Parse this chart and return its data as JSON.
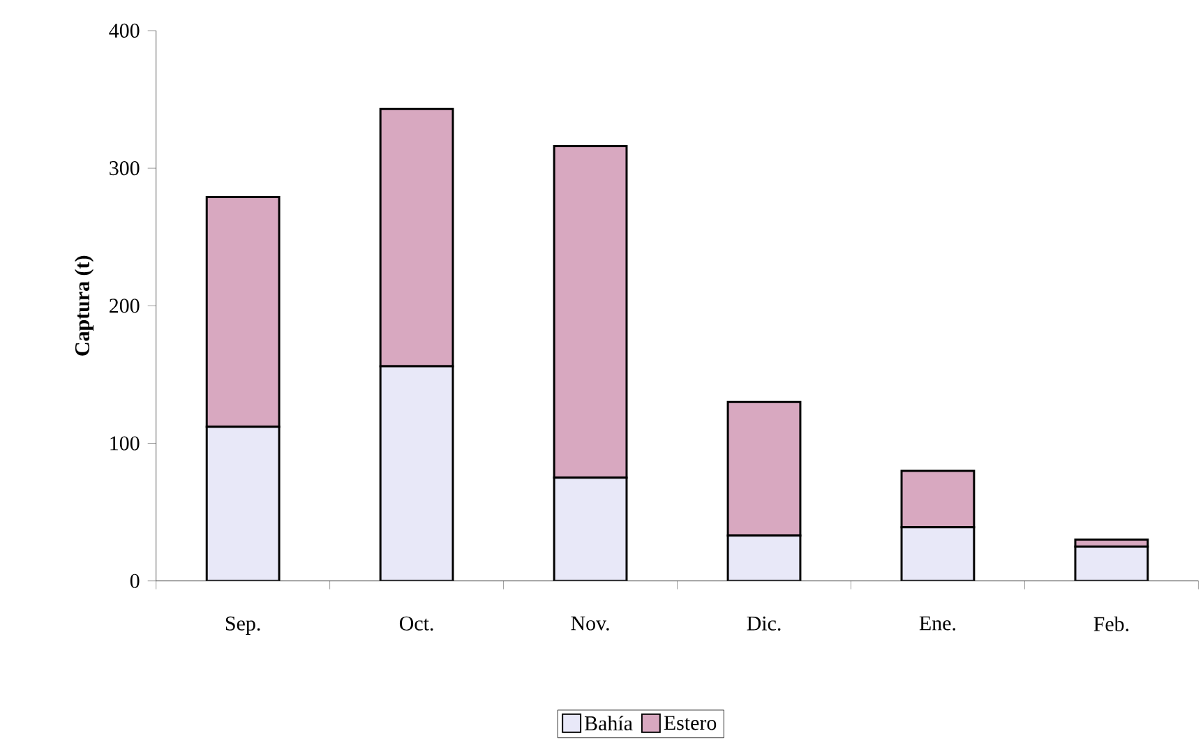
{
  "chart_data": {
    "type": "bar",
    "stacked": true,
    "ylabel": "Captura (t)",
    "categories": [
      "Sep.",
      "Oct.",
      "Nov.",
      "Dic.",
      "Ene.",
      "Feb."
    ],
    "series": [
      {
        "name": "Bahía",
        "color": "#e8e8f8",
        "values": [
          112,
          156,
          75,
          33,
          39,
          25
        ]
      },
      {
        "name": "Estero",
        "color": "#d8a8c0",
        "values": [
          167,
          187,
          241,
          97,
          41,
          5
        ]
      }
    ],
    "ylim": [
      0,
      400
    ],
    "yticks": [
      0,
      100,
      200,
      300,
      400
    ],
    "grid": false,
    "legend": "bottom"
  }
}
